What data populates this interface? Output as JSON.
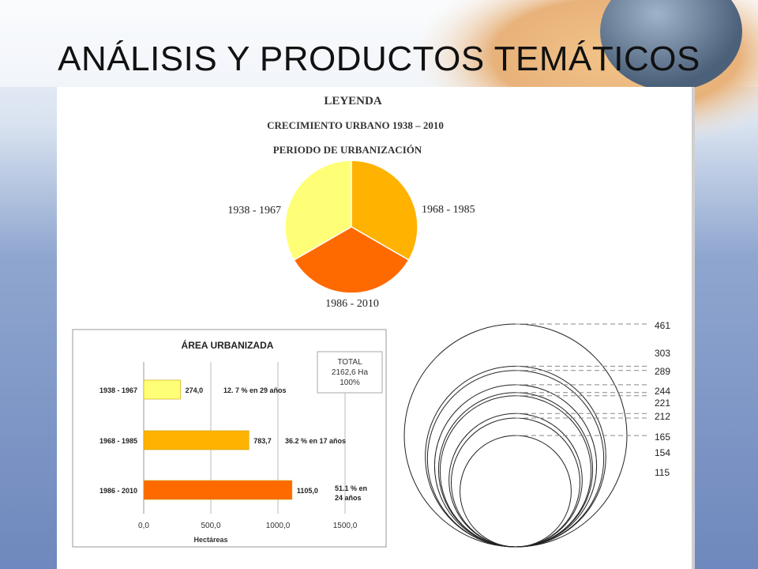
{
  "slide": {
    "title": "ANÁLISIS Y PRODUCTOS TEMÁTICOS"
  },
  "legend": {
    "heading": "LEYENDA",
    "subtitle": "CRECIMIENTO URBANO  1938 – 2010",
    "caption": "PERIODO DE URBANIZACIÓN"
  },
  "chart_data": [
    {
      "type": "pie",
      "title": "PERIODO DE URBANIZACIÓN",
      "slices": [
        {
          "label": "1968 - 1985",
          "value": 1,
          "color": "#ffb200"
        },
        {
          "label": "1986 - 2010",
          "value": 1,
          "color": "#ff6a00"
        },
        {
          "label": "1938 - 1967",
          "value": 1,
          "color": "#ffff77"
        }
      ]
    },
    {
      "type": "bar",
      "orientation": "horizontal",
      "title": "ÁREA  URBANIZADA",
      "xlabel": "Hectáreas",
      "xlim": [
        0,
        1500
      ],
      "ticks": [
        "0,0",
        "500,0",
        "1000,0",
        "1500,0"
      ],
      "tick_values": [
        0,
        500,
        1000,
        1500
      ],
      "categories": [
        "1938 - 1967",
        "1968 - 1985",
        "1986 - 2010"
      ],
      "values": [
        274.0,
        783.7,
        1105.0
      ],
      "value_labels": [
        "274,0",
        "783,7",
        "1105,0"
      ],
      "annotations": [
        "12. 7 %  en 29 años",
        "36.2 % en  17  años",
        "51.1 % en\n24 años"
      ],
      "colors": [
        "#ffff77",
        "#ffb200",
        "#ff6a00"
      ],
      "total_box": {
        "line1": "TOTAL",
        "line2": "2162,6 Ha",
        "line3": "100%"
      }
    },
    {
      "type": "proportional-circles",
      "values": [
        461,
        303,
        289,
        244,
        221,
        212,
        165,
        154,
        115
      ],
      "labels": [
        "461",
        "303",
        "289",
        "244",
        "221",
        "212",
        "165",
        "154",
        "115"
      ]
    }
  ]
}
